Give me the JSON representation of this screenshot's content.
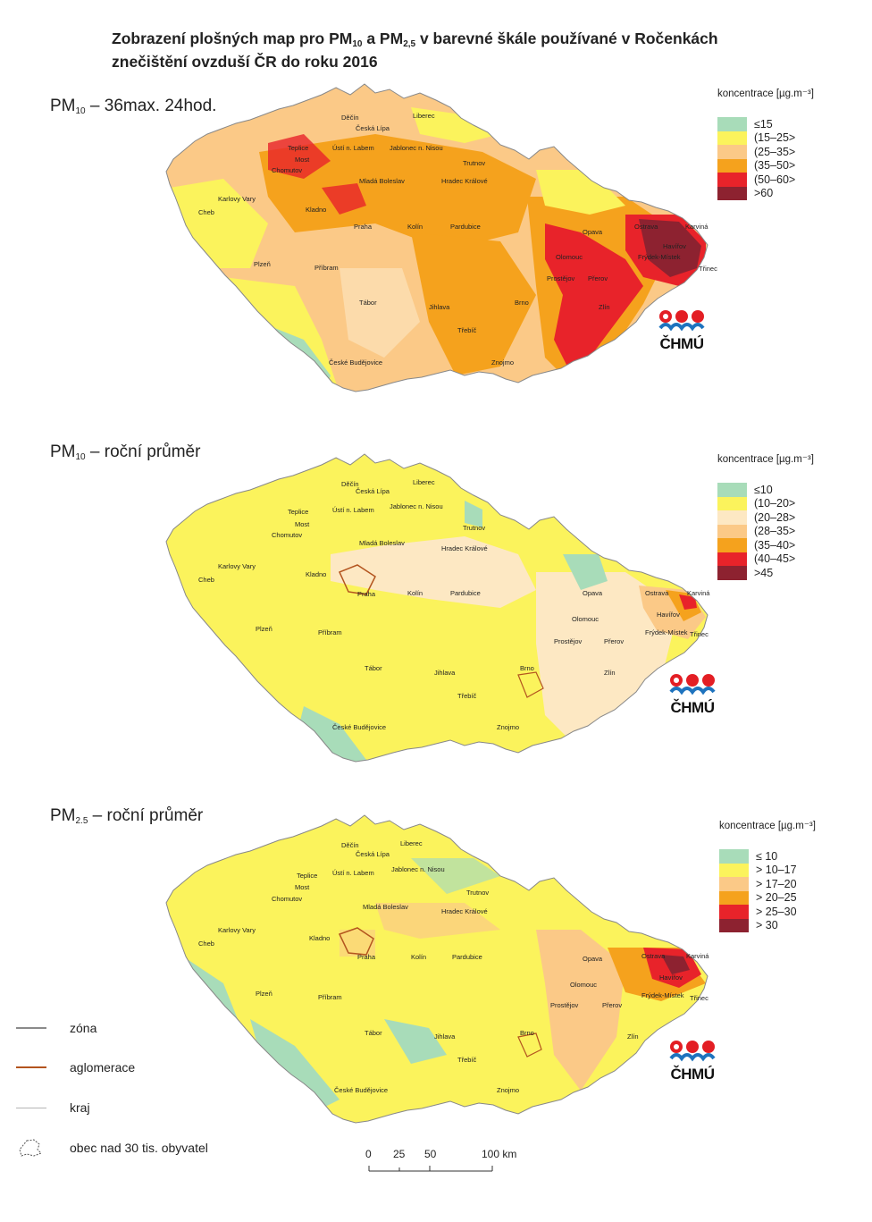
{
  "title": {
    "line1_a": "Zobrazení plošných map pro PM",
    "line1_sub1": "10",
    "line1_b": " a PM",
    "line1_sub2": "2,5",
    "line1_c": " v barevné škále používané v Ročenkách",
    "line2": "znečištění ovzduší ČR do roku 2016"
  },
  "panels": [
    {
      "title_main": "PM",
      "title_sub": "10",
      "title_rest": " – 36max. 24hod.",
      "legend_header": "koncentrace [µg.m⁻³]",
      "legend": [
        {
          "label": "≤15",
          "color": "#a8dcb9"
        },
        {
          "label": "(15–25>",
          "color": "#fbf35c"
        },
        {
          "label": "(25–35>",
          "color": "#fbc987"
        },
        {
          "label": "(35–50>",
          "color": "#f5a21d"
        },
        {
          "label": "(50–60>",
          "color": "#e8232a"
        },
        {
          "label": ">60",
          "color": "#8d2230"
        }
      ]
    },
    {
      "title_main": "PM",
      "title_sub": "10",
      "title_rest": " – roční průměr",
      "legend_header": "koncentrace [µg.m⁻³]",
      "legend": [
        {
          "label": "≤10",
          "color": "#a8dcb9"
        },
        {
          "label": "(10–20>",
          "color": "#fbf35c"
        },
        {
          "label": "(20–28>",
          "color": "#fde8c3"
        },
        {
          "label": "(28–35>",
          "color": "#fbc987"
        },
        {
          "label": "(35–40>",
          "color": "#f5a21d"
        },
        {
          "label": "(40–45>",
          "color": "#e8232a"
        },
        {
          "label": ">45",
          "color": "#8d2230"
        }
      ]
    },
    {
      "title_main": "PM",
      "title_sub": "2.5",
      "title_rest": " – roční průměr",
      "legend_header": "koncentrace [µg.m⁻³]",
      "legend": [
        {
          "label": "≤ 10",
          "color": "#a8dcb9"
        },
        {
          "label": "> 10–17",
          "color": "#fbf35c"
        },
        {
          "label": "> 17–20",
          "color": "#fbc987"
        },
        {
          "label": "> 20–25",
          "color": "#f5a21d"
        },
        {
          "label": "> 25–30",
          "color": "#e8232a"
        },
        {
          "label": "> 30",
          "color": "#8d2230"
        }
      ]
    }
  ],
  "logo_text": "ČHMÚ",
  "cities": [
    "Děčín",
    "Liberec",
    "Česká Lípa",
    "Teplice",
    "Ústí n. Labem",
    "Jablonec n. Nisou",
    "Most",
    "Chomutov",
    "Trutnov",
    "Mladá Boleslav",
    "Hradec Králové",
    "Karlovy Vary",
    "Cheb",
    "Kladno",
    "Praha",
    "Kolín",
    "Pardubice",
    "Ostrava",
    "Karviná",
    "Opava",
    "Havířov",
    "Olomouc",
    "Frýdek-Místek",
    "Třinec",
    "Plzeň",
    "Příbram",
    "Prostějov",
    "Přerov",
    "Tábor",
    "Jihlava",
    "Brno",
    "Zlín",
    "Třebíč",
    "České Budějovice",
    "Znojmo"
  ],
  "map_key": {
    "zone": "zóna",
    "agglomeration": "aglomerace",
    "region": "kraj",
    "town": "obec nad 30 tis. obyvatel",
    "zone_color": "#8a8a8a",
    "agglomeration_color": "#b3541e",
    "region_color": "#b5b5b5"
  },
  "scale": {
    "t0": "0",
    "t1": "25",
    "t2": "50",
    "t3": "100 km"
  }
}
